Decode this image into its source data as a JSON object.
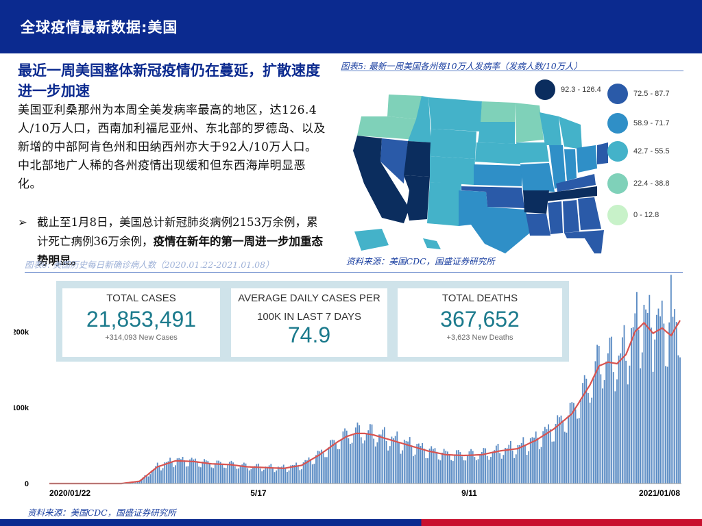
{
  "header": {
    "title": "全球疫情最新数据:美国"
  },
  "headline": "最近一周美国整体新冠疫情仍在蔓延，扩散速度进一步加速",
  "body_paragraph": "美国亚利桑那州为本周全美发病率最高的地区，达126.4人/10万人口，西南加利福尼亚州、东北部的罗德岛、以及新增的中部阿肯色州和田纳西州亦大于92人/10万人口。中北部地广人稀的各州疫情出现缓和但东西海岸明显恶化。",
  "bullet": {
    "arrow": "➢",
    "text": "截止至1月8日，美国总计新冠肺炎病例2153万余例，累计死亡病例36万余例，",
    "bold_text": "疫情在新年的第一周进一步加重态势明显。"
  },
  "map_figure": {
    "caption": "图表5: 最新一周美国各州每10万人发病率（发病人数/10万人）",
    "source": "资料来源：美国CDC，国盛证券研究所",
    "legend": [
      {
        "label": "92.3 - 126.4",
        "color": "#0b2d5e"
      },
      {
        "label": "72.5 - 87.7",
        "color": "#2a5aa8"
      },
      {
        "label": "58.9 - 71.7",
        "color": "#2f8fc7"
      },
      {
        "label": "42.7 - 55.5",
        "color": "#44b2c9"
      },
      {
        "label": "22.4 - 38.8",
        "color": "#7fd1b9"
      },
      {
        "label": "0 - 12.8",
        "color": "#c8f2c9"
      }
    ]
  },
  "chart_figure": {
    "caption": "图表6: 美国历史每日新确诊病人数（2020.01.22-2021.01.08）",
    "source": "资料来源：美国CDC，国盛证券研究所"
  },
  "stats": [
    {
      "label": "TOTAL CASES",
      "value": "21,853,491",
      "sub": "+314,093 New Cases"
    },
    {
      "label": "AVERAGE DAILY CASES PER",
      "label2": "100K IN LAST 7 DAYS",
      "value": "74.9",
      "sub": ""
    },
    {
      "label": "TOTAL DEATHS",
      "value": "367,652",
      "sub": "+3,623 New Deaths"
    }
  ],
  "chart_data": {
    "type": "bar",
    "title": "",
    "x_tick_labels": [
      "2020/01/22",
      "5/17",
      "9/11",
      "2021/01/08"
    ],
    "y_tick_labels": [
      "0",
      "100k",
      "200k"
    ],
    "ylim": [
      0,
      260000
    ],
    "series": [
      {
        "type": "bar",
        "color": "#5b8cc4"
      },
      {
        "type": "line",
        "color": "#d9534f"
      }
    ],
    "x_start": "2020-01-22",
    "x_end": "2021-01-08",
    "anchor_days": [
      0,
      40,
      50,
      60,
      70,
      80,
      90,
      100,
      110,
      120,
      130,
      140,
      150,
      160,
      165,
      170,
      175,
      180,
      190,
      200,
      210,
      220,
      230,
      240,
      250,
      260,
      270,
      280,
      290,
      300,
      305,
      310,
      315,
      320,
      325,
      330,
      335,
      340,
      345,
      350
    ],
    "anchor_avg": [
      0,
      0,
      3000,
      22000,
      30000,
      29000,
      26000,
      25000,
      22000,
      21000,
      20000,
      24000,
      38000,
      55000,
      62000,
      66000,
      66000,
      64000,
      57000,
      50000,
      43000,
      38000,
      37000,
      38000,
      43000,
      46000,
      57000,
      72000,
      92000,
      130000,
      155000,
      160000,
      158000,
      170000,
      200000,
      212000,
      198000,
      205000,
      195000,
      215000
    ]
  }
}
